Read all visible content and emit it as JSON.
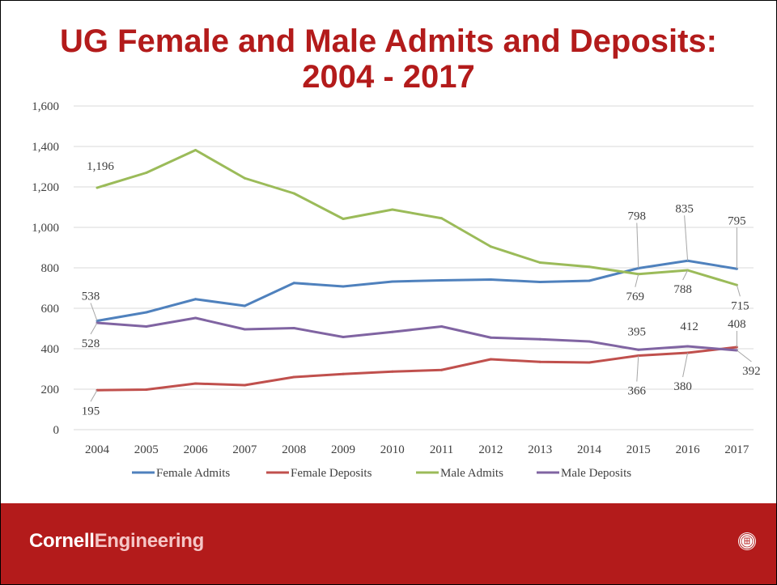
{
  "slide": {
    "title_line1": "UG Female and Male Admits and Deposits:",
    "title_line2": "2004 - 2017"
  },
  "footer": {
    "brand_part1": "Cornell",
    "brand_part2": "Engineering",
    "seal_icon": "cornell-seal-icon",
    "background": "#b31b1b"
  },
  "chart_data": {
    "type": "line",
    "title": "",
    "xlabel": "",
    "ylabel": "",
    "ylim": [
      0,
      1600
    ],
    "yticks": [
      0,
      200,
      400,
      600,
      800,
      1000,
      1200,
      1400,
      1600
    ],
    "ytick_labels": [
      "0",
      "200",
      "400",
      "600",
      "800",
      "1,000",
      "1,200",
      "1,400",
      "1,600"
    ],
    "grid": true,
    "legend": "bottom",
    "categories": [
      "2004",
      "2005",
      "2006",
      "2007",
      "2008",
      "2009",
      "2010",
      "2011",
      "2012",
      "2013",
      "2014",
      "2015",
      "2016",
      "2017"
    ],
    "series": [
      {
        "name": "Female Admits",
        "color": "#4f81bd",
        "values": [
          538,
          580,
          645,
          612,
          725,
          708,
          732,
          738,
          742,
          730,
          736,
          798,
          835,
          795
        ]
      },
      {
        "name": "Female Deposits",
        "color": "#c0504d",
        "values": [
          195,
          198,
          228,
          220,
          260,
          275,
          287,
          295,
          348,
          335,
          332,
          366,
          380,
          408
        ]
      },
      {
        "name": "Male Admits",
        "color": "#9bbb59",
        "values": [
          1196,
          1270,
          1382,
          1243,
          1168,
          1042,
          1088,
          1045,
          905,
          826,
          805,
          769,
          788,
          715
        ]
      },
      {
        "name": "Male Deposits",
        "color": "#8064a2",
        "values": [
          528,
          510,
          552,
          496,
          502,
          458,
          483,
          510,
          455,
          447,
          436,
          395,
          412,
          392
        ]
      }
    ],
    "annotations": [
      {
        "series": "Female Admits",
        "category": "2004",
        "text": "538",
        "pos": "above"
      },
      {
        "series": "Male Deposits",
        "category": "2004",
        "text": "528",
        "pos": "below"
      },
      {
        "series": "Female Deposits",
        "category": "2004",
        "text": "195",
        "pos": "below"
      },
      {
        "series": "Male Admits",
        "category": "2004",
        "text": "1,196",
        "pos": "above"
      },
      {
        "series": "Female Admits",
        "category": "2015",
        "text": "798",
        "pos": "above"
      },
      {
        "series": "Female Admits",
        "category": "2016",
        "text": "835",
        "pos": "above"
      },
      {
        "series": "Female Admits",
        "category": "2017",
        "text": "795",
        "pos": "above"
      },
      {
        "series": "Male Admits",
        "category": "2015",
        "text": "769",
        "pos": "below"
      },
      {
        "series": "Male Admits",
        "category": "2016",
        "text": "788",
        "pos": "below"
      },
      {
        "series": "Male Admits",
        "category": "2017",
        "text": "715",
        "pos": "below"
      },
      {
        "series": "Male Deposits",
        "category": "2015",
        "text": "395",
        "pos": "above"
      },
      {
        "series": "Male Deposits",
        "category": "2016",
        "text": "412",
        "pos": "above"
      },
      {
        "series": "Female Deposits",
        "category": "2017",
        "text": "408",
        "pos": "above"
      },
      {
        "series": "Female Deposits",
        "category": "2015",
        "text": "366",
        "pos": "below"
      },
      {
        "series": "Female Deposits",
        "category": "2016",
        "text": "380",
        "pos": "below"
      },
      {
        "series": "Male Deposits",
        "category": "2017",
        "text": "392",
        "pos": "below"
      }
    ]
  }
}
